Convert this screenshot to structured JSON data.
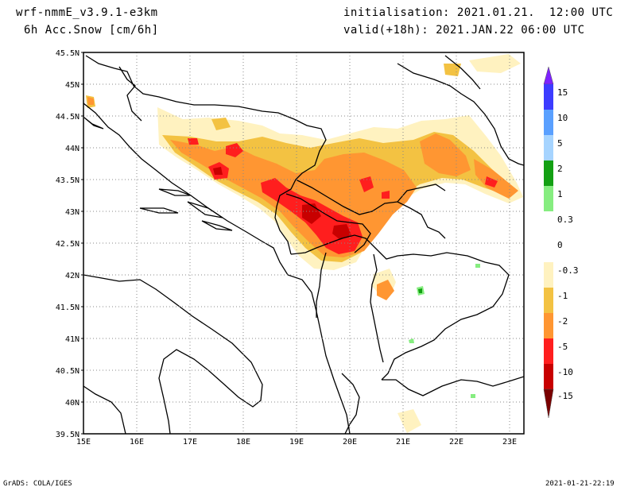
{
  "header": {
    "model": "wrf-nmmE_v3.9.1-e3km",
    "field": "6h Acc.Snow [cm/6h]",
    "init": "initialisation: 2021.01.21.  12:00 UTC",
    "valid": "valid(+18h): 2021.JAN.22 06:00 UTC"
  },
  "map": {
    "lat_ticks": [
      "45.5N",
      "45N",
      "44.5N",
      "44N",
      "43.5N",
      "43N",
      "42.5N",
      "42N",
      "41.5N",
      "41N",
      "40.5N",
      "40N",
      "39.5N"
    ],
    "lon_ticks": [
      "15E",
      "16E",
      "17E",
      "18E",
      "19E",
      "20E",
      "21E",
      "22E",
      "23E"
    ],
    "lon_range": [
      15,
      23.3
    ],
    "lat_range": [
      39.5,
      45.5
    ]
  },
  "colorbar": {
    "labels": [
      "15",
      "10",
      "5",
      "2",
      "1",
      "0.3",
      "0",
      "-0.3",
      "-1",
      "-2",
      "-5",
      "-10",
      "-15"
    ],
    "colors": [
      "#7e22ff",
      "#3c3cff",
      "#5aa0ff",
      "#a6d4ff",
      "#13a013",
      "#86ed80",
      "#ffffff",
      "#ffffff",
      "#fff2c0",
      "#f3c242",
      "#ff9632",
      "#ff1e1e",
      "#c80000",
      "#7a0000"
    ]
  },
  "footer": {
    "left": "GrADS: COLA/IGES",
    "right": "2021-01-21-22:19"
  }
}
